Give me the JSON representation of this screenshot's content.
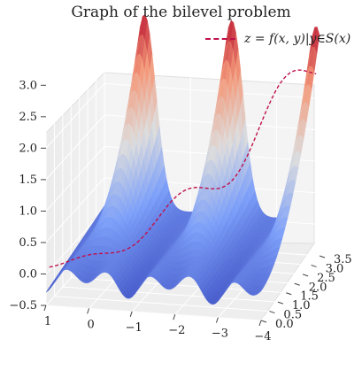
{
  "chart_data": {
    "type": "surface3d",
    "title": "Graph of the bilevel problem",
    "legend": {
      "entries": [
        {
          "label": "z = f(x, y)|y∈S(x)",
          "style": "dashed",
          "color": "#c0104a"
        }
      ],
      "placement": "top-right"
    },
    "xlabel": "",
    "ylabel": "",
    "zlabel": "",
    "x_ticks": [
      "1",
      "0",
      "−1",
      "−2",
      "−3",
      "−4"
    ],
    "y_ticks": [
      "0.0",
      "0.5",
      "1.0",
      "1.5",
      "2.0",
      "2.5",
      "3.0",
      "3.5"
    ],
    "z_ticks": [
      "−0.5",
      "0.0",
      "0.5",
      "1.0",
      "1.5",
      "2.0",
      "2.5",
      "3.0"
    ],
    "xlim": [
      -4,
      1
    ],
    "ylim": [
      0,
      3.5
    ],
    "zlim": [
      -0.5,
      3.3
    ],
    "colormap": "coolwarm",
    "surface_peaks_x": [
      0.07,
      -1.96,
      -3.92
    ],
    "surface_peak_z": 3.3,
    "curve_description": "y in S(x) traces the valley; z rises from ~0 at x=1 to ~3 at x=-4",
    "grid": true
  }
}
